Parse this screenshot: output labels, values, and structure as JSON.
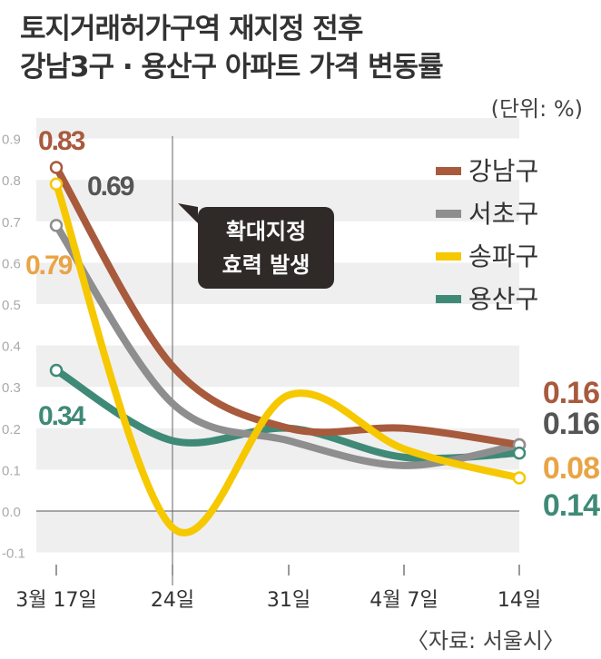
{
  "chart_data": {
    "type": "line",
    "title": "토지거래허가구역 재지정 전후",
    "subtitle": "강남3구 · 용산구 아파트 가격 변동률",
    "unit": "(단위: %)",
    "source": "〈자료: 서울시〉",
    "categories": [
      "3월 17일",
      "24일",
      "31일",
      "4월 7일",
      "14일"
    ],
    "ylim": [
      -0.1,
      0.9
    ],
    "yticks": [
      "0.9",
      "0.8",
      "0.7",
      "0.6",
      "0.5",
      "0.4",
      "0.3",
      "0.2",
      "0.1",
      "0.0",
      "-0.1"
    ],
    "grid": true,
    "legend_position": "top-right",
    "annotation": {
      "line1": "확대지정",
      "line2": "효력 발생",
      "at": "24일"
    },
    "series": [
      {
        "name": "강남구",
        "color": "#a85a3d",
        "label_color": "#a85a3d",
        "values": [
          0.83,
          0.35,
          0.2,
          0.2,
          0.16
        ],
        "start_label": "0.83",
        "end_label": "0.16"
      },
      {
        "name": "서초구",
        "color": "#8e8e8e",
        "label_color": "#555555",
        "values": [
          0.69,
          0.26,
          0.17,
          0.11,
          0.16
        ],
        "start_label": "0.69",
        "end_label": "0.16"
      },
      {
        "name": "송파구",
        "color": "#f6c800",
        "label_color": "#e9a446",
        "values": [
          0.79,
          -0.04,
          0.28,
          0.15,
          0.08
        ],
        "start_label": "0.79",
        "end_label": "0.08"
      },
      {
        "name": "용산구",
        "color": "#3f8a77",
        "label_color": "#3f8a77",
        "values": [
          0.34,
          0.17,
          0.2,
          0.13,
          0.14
        ],
        "start_label": "0.34",
        "end_label": "0.14"
      }
    ]
  }
}
